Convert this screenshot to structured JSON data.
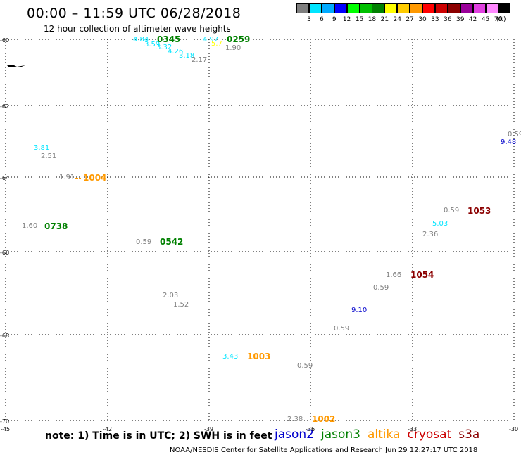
{
  "title": "00:00 – 11:59 UTC 06/28/2018",
  "subtitle": "12 hour collection of altimeter wave heights",
  "legend": {
    "ticks": [
      "3",
      "6",
      "9",
      "12",
      "15",
      "18",
      "21",
      "24",
      "27",
      "30",
      "33",
      "36",
      "39",
      "42",
      "45",
      "70"
    ],
    "unit": "(ft)",
    "colors": [
      "#7f7f7f",
      "#00e5ff",
      "#00aaff",
      "#0000ff",
      "#00ff00",
      "#00c000",
      "#008000",
      "#ffff00",
      "#ffcc00",
      "#ff9900",
      "#ff0000",
      "#cc0000",
      "#8b0000",
      "#990099",
      "#e040e0",
      "#ff88ff",
      "#000000"
    ]
  },
  "axes": {
    "lat": [
      "-60",
      "-62",
      "-64",
      "-66",
      "-68",
      "-70"
    ],
    "lon": [
      "-45",
      "-42",
      "-39",
      "-36",
      "-33",
      "-30"
    ]
  },
  "readings": [
    {
      "text": "4.84",
      "color": "#00e5ff"
    },
    {
      "text": "3.59",
      "color": "#00e5ff"
    },
    {
      "text": "3.32",
      "color": "#00e5ff"
    },
    {
      "text": "4.26",
      "color": "#00e5ff"
    },
    {
      "text": "3.18",
      "color": "#00e5ff"
    },
    {
      "text": "2.17",
      "color": "#7f7f7f"
    },
    {
      "text": "4.97",
      "color": "#00e5ff"
    },
    {
      "text": "5.7",
      "color": "#ffff00"
    },
    {
      "text": "1.90",
      "color": "#7f7f7f"
    },
    {
      "text": "3.81",
      "color": "#00e5ff"
    },
    {
      "text": "2.51",
      "color": "#7f7f7f"
    },
    {
      "text": "1.91",
      "color": "#7f7f7f"
    },
    {
      "text": "1.60",
      "color": "#7f7f7f"
    },
    {
      "text": "0.59",
      "color": "#7f7f7f"
    },
    {
      "text": "2.03",
      "color": "#7f7f7f"
    },
    {
      "text": "1.52",
      "color": "#7f7f7f"
    },
    {
      "text": "3.43",
      "color": "#00e5ff"
    },
    {
      "text": "0.59",
      "color": "#7f7f7f"
    },
    {
      "text": "2.38",
      "color": "#7f7f7f"
    },
    {
      "text": "0.59",
      "color": "#7f7f7f"
    },
    {
      "text": "9.10",
      "color": "#0000cc"
    },
    {
      "text": "0.59",
      "color": "#7f7f7f"
    },
    {
      "text": "1.66",
      "color": "#7f7f7f"
    },
    {
      "text": "0.59",
      "color": "#7f7f7f"
    },
    {
      "text": "5.03",
      "color": "#00e5ff"
    },
    {
      "text": "2.36",
      "color": "#7f7f7f"
    },
    {
      "text": "0.59",
      "color": "#7f7f7f"
    },
    {
      "text": "9.48",
      "color": "#0000cc"
    }
  ],
  "times": [
    {
      "text": "0345",
      "color": "#008000"
    },
    {
      "text": "0259",
      "color": "#008000"
    },
    {
      "text": "1004",
      "color": "#ff9900"
    },
    {
      "text": "0738",
      "color": "#008000"
    },
    {
      "text": "0542",
      "color": "#008000"
    },
    {
      "text": "1003",
      "color": "#ff9900"
    },
    {
      "text": "1002",
      "color": "#ff9900"
    },
    {
      "text": "1054",
      "color": "#8b0000"
    },
    {
      "text": "1053",
      "color": "#8b0000"
    }
  ],
  "note": "note: 1) Time is in UTC; 2) SWH is in feet",
  "satellites": [
    {
      "name": "jason2",
      "color": "#0000cc"
    },
    {
      "name": "jason3",
      "color": "#008000"
    },
    {
      "name": "altika",
      "color": "#ff9900"
    },
    {
      "name": "cryosat",
      "color": "#cc0000"
    },
    {
      "name": "s3a",
      "color": "#8b0000"
    }
  ],
  "credit": "NOAA/NESDIS Center for Satellite Applications and Research     Jun 29 12:27:17 UTC 2018"
}
